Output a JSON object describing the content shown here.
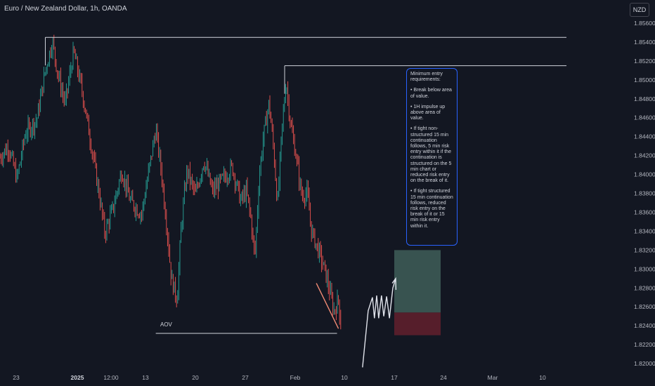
{
  "header": {
    "title": "Euro / New Zealand Dollar, 1h, OANDA",
    "currency": "NZD"
  },
  "colors": {
    "background": "#131722",
    "up": "#26a69a",
    "down": "#ef5350",
    "level_line": "#d1d4dc",
    "note_border": "#2962ff",
    "target_zone": "#3d5a55",
    "stop_zone": "#5a1f2c",
    "trendline": "#f08a74"
  },
  "annotations": {
    "aov_label": "AOV",
    "note": [
      "Minimum entry requirements:",
      "• Break below area of value.",
      "• 1H impulse up above area of value.",
      "• If tight non-structured 15 min continuation follows, 5 min risk entry within it if the continuation is structured on the 5 min chart or reduced risk entry on the break of it.",
      "• If tight structured 15 min continuation follows, reduced risk entry on the break of it or 15 min risk entry within it."
    ]
  },
  "chart_data": {
    "type": "candlestick",
    "title": "Euro / New Zealand Dollar, 1h, OANDA",
    "y_axis": {
      "ticks": [
        "1.85600",
        "1.85400",
        "1.85200",
        "1.85000",
        "1.84800",
        "1.84600",
        "1.84400",
        "1.84200",
        "1.84000",
        "1.83800",
        "1.83600",
        "1.83400",
        "1.83200",
        "1.83000",
        "1.82800",
        "1.82600",
        "1.82400",
        "1.82200",
        "1.82000"
      ],
      "range": [
        1.819,
        1.857
      ]
    },
    "x_axis": {
      "ticks": [
        "23",
        "2025",
        "12:00",
        "13",
        "20",
        "27",
        "Feb",
        "10",
        "17",
        "24",
        "Mar",
        "10"
      ],
      "bold": [
        "2025"
      ]
    },
    "price_path": [
      [
        0,
        1.8418
      ],
      [
        0.03,
        1.843
      ],
      [
        0.06,
        1.8395
      ],
      [
        0.09,
        1.8444
      ],
      [
        0.13,
        1.8458
      ],
      [
        0.16,
        1.851
      ],
      [
        0.185,
        1.8541
      ],
      [
        0.205,
        1.8505
      ],
      [
        0.23,
        1.8475
      ],
      [
        0.26,
        1.853
      ],
      [
        0.29,
        1.8488
      ],
      [
        0.32,
        1.8435
      ],
      [
        0.35,
        1.838
      ],
      [
        0.37,
        1.8338
      ],
      [
        0.4,
        1.8365
      ],
      [
        0.43,
        1.8404
      ],
      [
        0.46,
        1.8372
      ],
      [
        0.5,
        1.8358
      ],
      [
        0.53,
        1.8412
      ],
      [
        0.55,
        1.8448
      ],
      [
        0.57,
        1.8402
      ],
      [
        0.59,
        1.8342
      ],
      [
        0.605,
        1.829
      ],
      [
        0.625,
        1.8268
      ],
      [
        0.64,
        1.8345
      ],
      [
        0.66,
        1.8405
      ],
      [
        0.69,
        1.8378
      ],
      [
        0.72,
        1.8415
      ],
      [
        0.75,
        1.8382
      ],
      [
        0.79,
        1.8396
      ],
      [
        0.82,
        1.8408
      ],
      [
        0.85,
        1.8372
      ],
      [
        0.87,
        1.8382
      ],
      [
        0.885,
        1.8355
      ],
      [
        0.9,
        1.8312
      ],
      [
        0.915,
        1.8398
      ],
      [
        0.93,
        1.844
      ],
      [
        0.95,
        1.8476
      ],
      [
        0.965,
        1.843
      ],
      [
        0.98,
        1.8368
      ],
      [
        0.995,
        1.8445
      ],
      [
        1.01,
        1.85
      ],
      [
        1.025,
        1.8455
      ],
      [
        1.045,
        1.842
      ],
      [
        1.065,
        1.8378
      ],
      [
        1.085,
        1.838
      ],
      [
        1.1,
        1.834
      ],
      [
        1.13,
        1.8315
      ],
      [
        1.15,
        1.8295
      ],
      [
        1.165,
        1.8275
      ],
      [
        1.18,
        1.8255
      ],
      [
        1.195,
        1.8268
      ],
      [
        1.205,
        1.8235
      ]
    ],
    "levels": [
      {
        "price": 1.8545,
        "from": 0.16,
        "to": 2.0
      },
      {
        "price": 1.8515,
        "from": 1.005,
        "to": 2.0
      },
      {
        "price": 1.8232,
        "from": 0.55,
        "to": 1.19,
        "label": "AOV"
      }
    ],
    "trendline": [
      [
        1.117,
        1.8285
      ],
      [
        1.195,
        1.8237
      ]
    ],
    "position": {
      "target_top": 1.832,
      "entry": 1.8254,
      "stop": 1.823
    },
    "projection": [
      [
        1.28,
        1.8196
      ],
      [
        1.3,
        1.8256
      ],
      [
        1.315,
        1.827
      ],
      [
        1.322,
        1.8248
      ],
      [
        1.33,
        1.8272
      ],
      [
        1.337,
        1.8248
      ],
      [
        1.347,
        1.8272
      ],
      [
        1.355,
        1.825
      ],
      [
        1.365,
        1.8271
      ],
      [
        1.375,
        1.8248
      ],
      [
        1.387,
        1.828
      ],
      [
        1.397,
        1.829
      ]
    ],
    "projection_arrowhead": [
      [
        1.385,
        1.8285
      ],
      [
        1.397,
        1.829
      ],
      [
        1.398,
        1.8278
      ]
    ]
  }
}
